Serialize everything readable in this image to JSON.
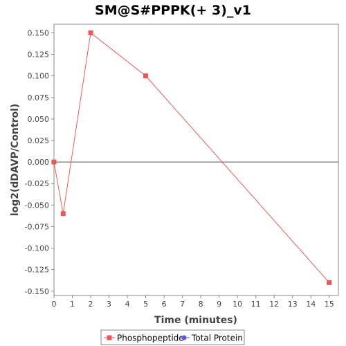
{
  "chart_data": {
    "type": "line",
    "title": "SM@S#PPPK(+ 3)_v1",
    "xlabel": "Time (minutes)",
    "ylabel": "log2(dDAVP/Control)",
    "xlim": [
      0,
      15.5
    ],
    "ylim": [
      -0.155,
      0.16
    ],
    "xticks": [
      0,
      1,
      2,
      3,
      4,
      5,
      6,
      7,
      8,
      9,
      10,
      11,
      12,
      13,
      14,
      15
    ],
    "yticks": [
      0.15,
      0.125,
      0.1,
      0.075,
      0.05,
      0.025,
      0.0,
      -0.025,
      -0.05,
      -0.075,
      -0.1,
      -0.125,
      -0.15
    ],
    "ytick_labels": [
      "0.150",
      "0.125",
      "0.100",
      "0.075",
      "0.050",
      "0.025",
      "0.000",
      "-0.025",
      "-0.050",
      "-0.075",
      "-0.100",
      "-0.125",
      "-0.150"
    ],
    "zero_line": true,
    "grid": false,
    "legend_position": "bottom",
    "series": [
      {
        "name": "Phosphopeptide",
        "color": "#e85a5a",
        "marker": "square",
        "x": [
          0,
          0.5,
          2,
          5,
          15
        ],
        "y": [
          0.0,
          -0.06,
          0.15,
          0.1,
          -0.14
        ]
      },
      {
        "name": "Total Protein",
        "color": "#5a5ae8",
        "marker": "circle",
        "x": [],
        "y": []
      }
    ]
  }
}
